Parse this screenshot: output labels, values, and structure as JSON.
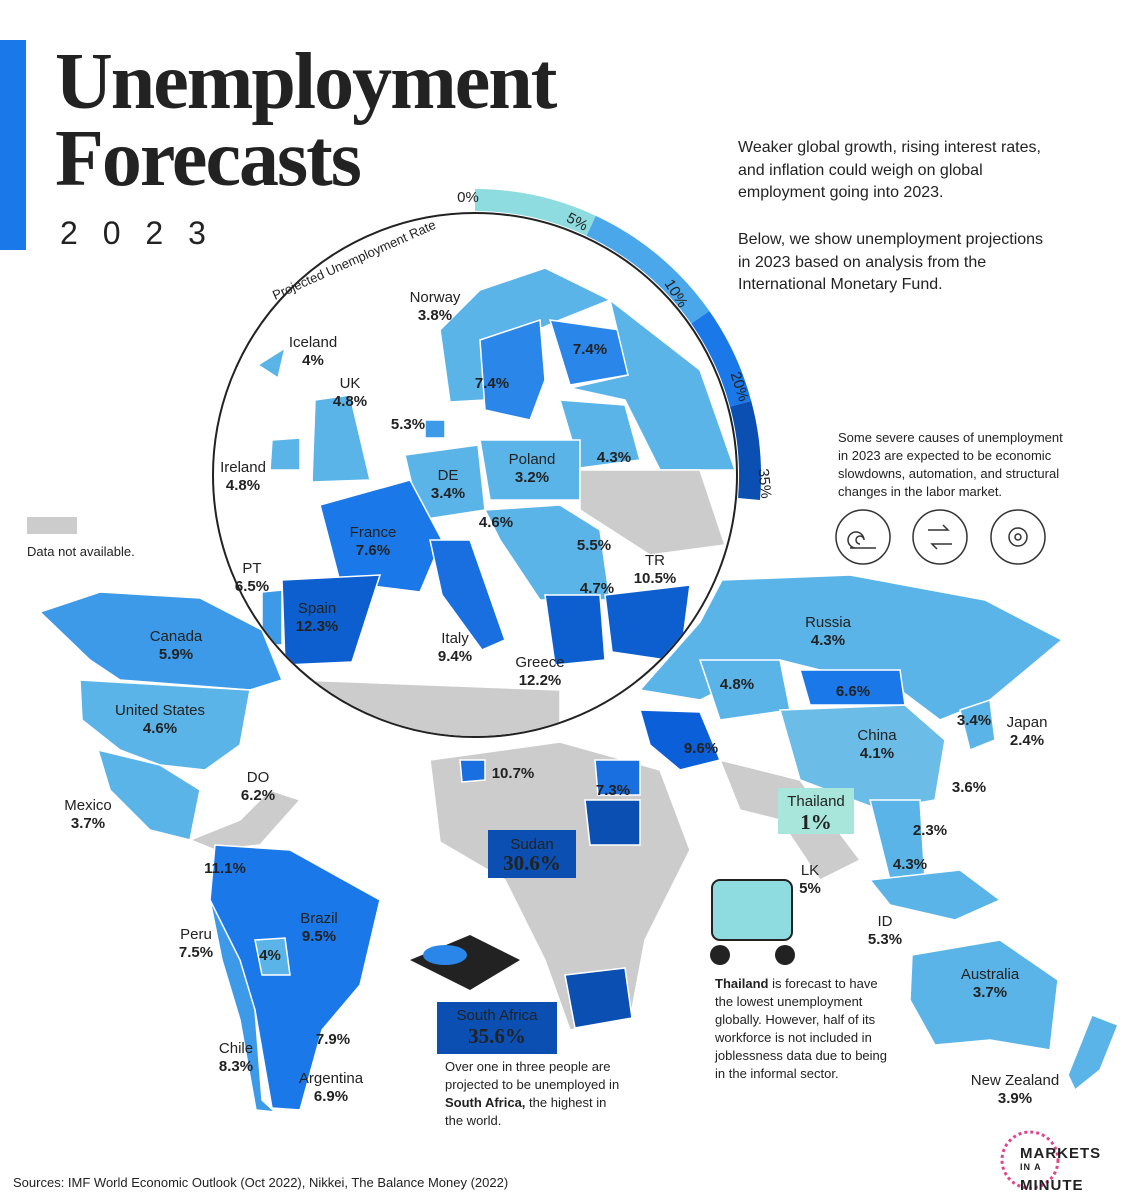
{
  "header": {
    "title": [
      "Unemployment",
      "Forecasts"
    ],
    "year": "2 0 2 3"
  },
  "intro": [
    "Weaker global growth, rising interest rates,",
    "and inflation could weigh on global",
    "employment going into 2023.",
    "Below, we show unemployment projections",
    "in 2023 based on analysis from the",
    "International Monetary Fund."
  ],
  "legend": {
    "title": "Projected Unemployment Rate",
    "ticks": [
      "0%",
      "5%",
      "10%",
      "20%",
      "35%"
    ],
    "not_available": "Data not available."
  },
  "causes_note": [
    "Some severe causes of unemployment",
    "in 2023 are expected to be economic",
    "slowdowns, automation, and structural",
    "changes in the labor market."
  ],
  "countries": [
    {
      "name": "Norway",
      "value": "3.8%"
    },
    {
      "name": "Iceland",
      "value": "4%"
    },
    {
      "name": "UK",
      "value": "4.8%"
    },
    {
      "name": "Ireland",
      "value": "4.8%"
    },
    {
      "name": "DE",
      "value": "3.4%"
    },
    {
      "name": "Poland",
      "value": "3.2%"
    },
    {
      "name": "France",
      "value": "7.6%"
    },
    {
      "name": "PT",
      "value": "6.5%"
    },
    {
      "name": "Spain",
      "value": "12.3%"
    },
    {
      "name": "Italy",
      "value": "9.4%"
    },
    {
      "name": "Greece",
      "value": "12.2%"
    },
    {
      "name": "TR",
      "value": "10.5%"
    },
    {
      "name": "Russia",
      "value": "4.3%"
    },
    {
      "name": "Canada",
      "value": "5.9%"
    },
    {
      "name": "United States",
      "value": "4.6%"
    },
    {
      "name": "DO",
      "value": "6.2%"
    },
    {
      "name": "Mexico",
      "value": "3.7%"
    },
    {
      "name": "China",
      "value": "4.1%"
    },
    {
      "name": "Japan",
      "value": "2.4%"
    },
    {
      "name": "LK",
      "value": "5%"
    },
    {
      "name": "ID",
      "value": "5.3%"
    },
    {
      "name": "Brazil",
      "value": "9.5%"
    },
    {
      "name": "Peru",
      "value": "7.5%"
    },
    {
      "name": "Chile",
      "value": "8.3%"
    },
    {
      "name": "Argentina",
      "value": "6.9%"
    },
    {
      "name": "Australia",
      "value": "3.7%"
    },
    {
      "name": "New Zealand",
      "value": "3.9%"
    }
  ],
  "unnamed_values": [
    "7.4%",
    "7.4%",
    "5.3%",
    "4.3%",
    "4.6%",
    "5.5%",
    "4.7%",
    "10.7%",
    "7.3%",
    "9.6%",
    "4.8%",
    "6.6%",
    "3.4%",
    "3.6%",
    "2.3%",
    "4.3%",
    "11.1%",
    "4%",
    "7.9%"
  ],
  "callouts": [
    {
      "name": "Thailand",
      "value": "1%"
    },
    {
      "name": "Sudan",
      "value": "30.6%"
    },
    {
      "name": "South Africa",
      "value": "35.6%"
    }
  ],
  "south_africa_note": [
    {
      "text": "Over one in three people are"
    },
    {
      "text": "projected to be unemployed in"
    },
    {
      "bold": "South Africa,",
      "text": " the highest in"
    },
    {
      "text": "the world."
    }
  ],
  "thailand_note": [
    {
      "bold": "Thailand",
      "text": " is forecast to have"
    },
    {
      "text": "the lowest unemployment"
    },
    {
      "text": "globally. However, half of its"
    },
    {
      "text": "workforce is not included in"
    },
    {
      "text": "joblessness data due to being"
    },
    {
      "text": "in the informal sector."
    }
  ],
  "source": "Sources: IMF World Economic Outlook (Oct 2022), Nikkei, The Balance Money (2022)",
  "logo": [
    "MARKETS",
    "IN A",
    "MINUTE"
  ]
}
